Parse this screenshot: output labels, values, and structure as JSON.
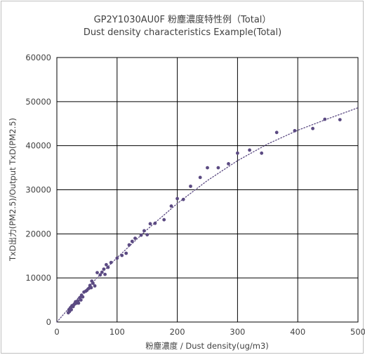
{
  "chart_data": {
    "type": "scatter",
    "title": "GP2Y1030AU0F 粉塵濃度特性例（Total）",
    "subtitle": "Dust density characteristics Example(Total)",
    "xlabel": "粉塵濃度 / Dust density(ug/m3)",
    "ylabel": "TxD出力(PM2.5)/Output TxD(PM2.5)",
    "xlim": [
      0,
      500
    ],
    "ylim": [
      0,
      60000
    ],
    "x_ticks": [
      "0",
      "100",
      "200",
      "300",
      "400",
      "500"
    ],
    "y_ticks": [
      "0",
      "10000",
      "20000",
      "30000",
      "40000",
      "50000",
      "60000"
    ],
    "grid": true,
    "series": [
      {
        "color": "#5b4a82",
        "points": [
          [
            19,
            2100
          ],
          [
            20,
            2800
          ],
          [
            21,
            2400
          ],
          [
            22,
            3100
          ],
          [
            23,
            3300
          ],
          [
            24,
            2800
          ],
          [
            25,
            3700
          ],
          [
            27,
            3500
          ],
          [
            28,
            3900
          ],
          [
            30,
            4100
          ],
          [
            31,
            4600
          ],
          [
            33,
            4300
          ],
          [
            35,
            4800
          ],
          [
            36,
            4300
          ],
          [
            38,
            5500
          ],
          [
            40,
            5000
          ],
          [
            41,
            6100
          ],
          [
            43,
            5700
          ],
          [
            45,
            6800
          ],
          [
            48,
            7000
          ],
          [
            50,
            7200
          ],
          [
            53,
            7600
          ],
          [
            55,
            8300
          ],
          [
            57,
            7800
          ],
          [
            58,
            9300
          ],
          [
            60,
            8800
          ],
          [
            63,
            8200
          ],
          [
            67,
            11200
          ],
          [
            72,
            10700
          ],
          [
            75,
            11300
          ],
          [
            78,
            12000
          ],
          [
            80,
            10800
          ],
          [
            82,
            13000
          ],
          [
            85,
            12400
          ],
          [
            90,
            13500
          ],
          [
            100,
            14500
          ],
          [
            108,
            15100
          ],
          [
            115,
            15600
          ],
          [
            120,
            17500
          ],
          [
            125,
            18300
          ],
          [
            130,
            19000
          ],
          [
            140,
            19700
          ],
          [
            145,
            20700
          ],
          [
            150,
            19800
          ],
          [
            155,
            22300
          ],
          [
            163,
            22400
          ],
          [
            178,
            23200
          ],
          [
            190,
            26300
          ],
          [
            200,
            28000
          ],
          [
            210,
            27800
          ],
          [
            222,
            30800
          ],
          [
            238,
            32800
          ],
          [
            250,
            35000
          ],
          [
            268,
            35000
          ],
          [
            285,
            35900
          ],
          [
            300,
            38300
          ],
          [
            320,
            39000
          ],
          [
            340,
            38300
          ],
          [
            365,
            43000
          ],
          [
            395,
            43400
          ],
          [
            425,
            43900
          ],
          [
            445,
            46000
          ],
          [
            470,
            45900
          ]
        ]
      }
    ],
    "trendline": {
      "style": "dotted",
      "color": "#5b4a82",
      "points": [
        [
          0,
          0
        ],
        [
          25,
          3900
        ],
        [
          50,
          7600
        ],
        [
          75,
          11200
        ],
        [
          100,
          14600
        ],
        [
          150,
          21000
        ],
        [
          200,
          26900
        ],
        [
          250,
          32100
        ],
        [
          300,
          36600
        ],
        [
          350,
          40400
        ],
        [
          400,
          43500
        ],
        [
          450,
          46100
        ],
        [
          500,
          48600
        ]
      ]
    }
  }
}
